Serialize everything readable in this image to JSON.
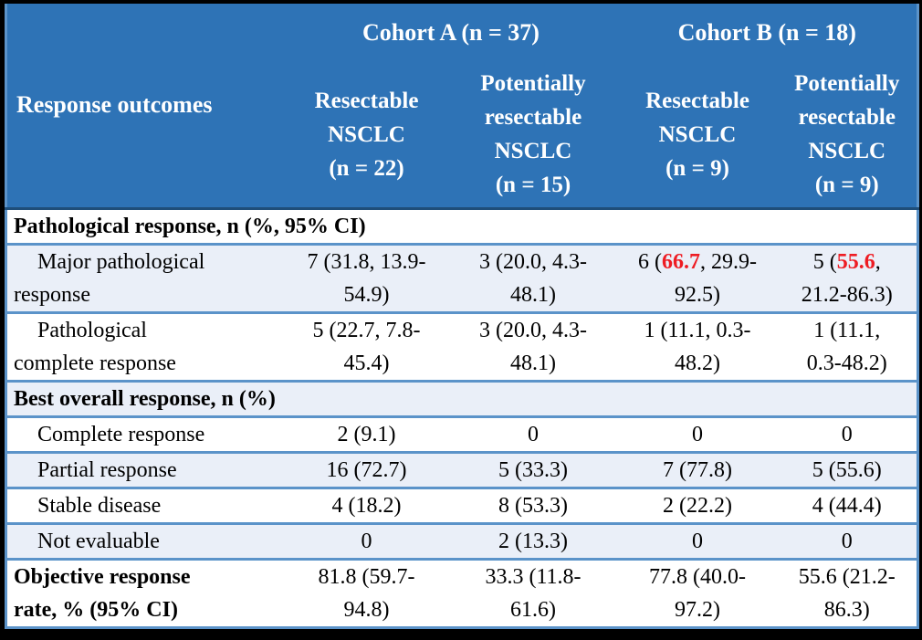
{
  "colors": {
    "frame_bg": "#000000",
    "header_bg": "#2e73b6",
    "header_text": "#ffffff",
    "header_border": "#1f4e79",
    "row_border": "#5b93c9",
    "row_alt_bg": "#eaeff8",
    "body_text": "#000000",
    "highlight_red": "#ee1c23"
  },
  "table": {
    "header": {
      "outcome_col": "Response outcomes",
      "cohort_a": "Cohort A (n = 37)",
      "cohort_b": "Cohort B (n = 18)",
      "sub": [
        "Resectable\nNSCLC\n(n = 22)",
        "Potentially\nresectable\nNSCLC\n(n = 15)",
        "Resectable\nNSCLC\n(n = 9)",
        "Potentially\nresectable\nNSCLC\n(n = 9)"
      ]
    },
    "rows": {
      "path_section_label": "Pathological response, n (%, 95% CI)",
      "mpr": {
        "label": "Major pathological\nresponse",
        "a_res": "7 (31.8, 13.9-\n54.9)",
        "a_pot": "3 (20.0, 4.3-\n48.1)",
        "b_res": {
          "pre": "6 (",
          "red": "66.7",
          "post": ", 29.9-\n92.5)"
        },
        "b_pot": {
          "pre": "5 (",
          "red": "55.6",
          "post": ",\n21.2-86.3)"
        }
      },
      "pcr": {
        "label": "Pathological\ncomplete response",
        "values": [
          "5 (22.7, 7.8-\n45.4)",
          "3 (20.0, 4.3-\n48.1)",
          "1 (11.1, 0.3-\n48.2)",
          "1 (11.1,\n0.3-48.2)"
        ]
      },
      "bor_section_label": "Best overall response, n (%)",
      "cr": {
        "label": "Complete response",
        "values": [
          "2 (9.1)",
          "0",
          "0",
          "0"
        ]
      },
      "pr": {
        "label": "Partial response",
        "values": [
          "16 (72.7)",
          "5 (33.3)",
          "7 (77.8)",
          "5 (55.6)"
        ]
      },
      "sd": {
        "label": "Stable disease",
        "values": [
          "4 (18.2)",
          "8 (53.3)",
          "2 (22.2)",
          "4 (44.4)"
        ]
      },
      "ne": {
        "label": "Not evaluable",
        "values": [
          "0",
          "2 (13.3)",
          "0",
          "0"
        ]
      },
      "orr": {
        "label": "Objective response\nrate, % (95% CI)",
        "values": [
          "81.8 (59.7-\n94.8)",
          "33.3 (11.8-\n61.6)",
          "77.8 (40.0-\n97.2)",
          "55.6 (21.2-\n86.3)"
        ]
      }
    }
  }
}
